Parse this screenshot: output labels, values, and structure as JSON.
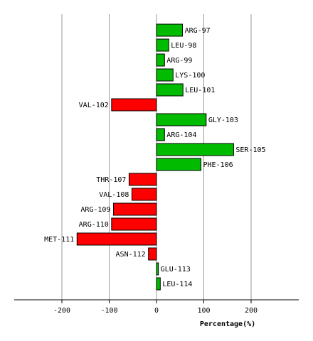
{
  "chart_data": {
    "type": "bar",
    "orientation": "horizontal",
    "categories": [
      "ARG-97",
      "LEU-98",
      "ARG-99",
      "LYS-100",
      "LEU-101",
      "VAL-102",
      "GLY-103",
      "ARG-104",
      "SER-105",
      "PHE-106",
      "THR-107",
      "VAL-108",
      "ARG-109",
      "ARG-110",
      "MET-111",
      "ASN-112",
      "GLU-113",
      "LEU-114"
    ],
    "values": [
      55,
      26,
      17,
      35,
      56,
      -95,
      105,
      17,
      163,
      94,
      -58,
      -52,
      -91,
      -95,
      -168,
      -17,
      4,
      8
    ],
    "xlabel": "Percentage(%)",
    "xlim": [
      -300,
      300
    ],
    "xticks": [
      -200,
      -100,
      0,
      100,
      200
    ],
    "grid": true,
    "colors": {
      "positive": "#00bb00",
      "negative": "#ff0000",
      "outline": "#000000",
      "grid": "#999999"
    }
  }
}
